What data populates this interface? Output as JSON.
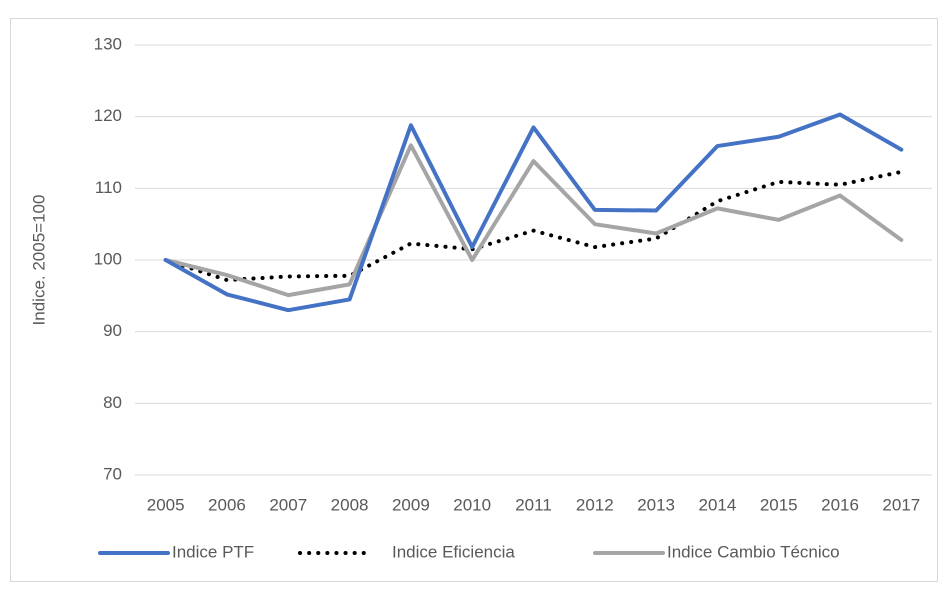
{
  "chart_data": {
    "type": "line",
    "y_label": "Indice. 2005=100",
    "x": [
      2005,
      2006,
      2007,
      2008,
      2009,
      2010,
      2011,
      2012,
      2013,
      2014,
      2015,
      2016,
      2017
    ],
    "series": [
      {
        "name": "Indice PTF",
        "color": "#4472c4",
        "style": "solid",
        "values": [
          100,
          95.2,
          93.0,
          94.5,
          118.8,
          101.8,
          118.5,
          107.0,
          106.9,
          115.9,
          117.2,
          120.3,
          115.4
        ]
      },
      {
        "name": "Indice Eficiencia",
        "color": "#000000",
        "style": "dotted",
        "values": [
          100,
          97.2,
          97.7,
          97.8,
          102.3,
          101.5,
          104.1,
          101.8,
          103.0,
          108.2,
          110.9,
          110.5,
          112.3
        ]
      },
      {
        "name": "Indice Cambio Técnico",
        "color": "#a5a5a5",
        "style": "solid",
        "values": [
          100,
          97.9,
          95.1,
          96.6,
          116.0,
          100.0,
          113.8,
          105.0,
          103.7,
          107.2,
          105.6,
          109.0,
          102.8
        ]
      }
    ],
    "ylim": [
      70,
      130
    ],
    "yticks": [
      70,
      80,
      90,
      100,
      110,
      120,
      130
    ],
    "grid": true,
    "legend": "bottom"
  }
}
